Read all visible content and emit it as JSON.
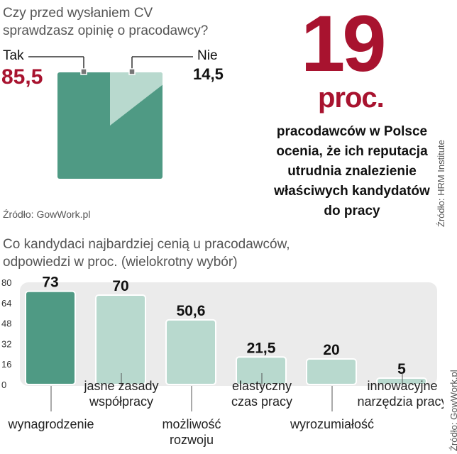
{
  "pie_block": {
    "question": [
      "Czy przed wysłaniem CV",
      "sprawdzasz opinię o pracodawcy?"
    ],
    "source": "Źródło: GowWork.pl"
  },
  "highlight": {
    "number": "19",
    "unit": "proc.",
    "description": [
      "pracodawców w Polsce",
      "ocenia, że ich reputacja",
      "utrudnia znalezienie",
      "właściwych kandydatów",
      "do pracy"
    ],
    "source": "Źródło: HRM Institute"
  },
  "bar_block": {
    "title": [
      "Co kandydaci najbardziej cenią u pracodawców,",
      "odpowiedzi w proc. (wielokrotny wybór)"
    ],
    "source": "Źródło: GowWork.pl"
  },
  "colors": {
    "accent": "#a8132f",
    "dark_green": "#4f9a84",
    "light_green": "#b8d9ce",
    "panel": "#ebebeb"
  },
  "chart_data": [
    {
      "type": "pie",
      "categories": [
        "Tak",
        "Nie"
      ],
      "values": [
        85.5,
        14.5
      ],
      "value_labels": [
        "85,5",
        "14,5"
      ]
    },
    {
      "type": "bar",
      "categories": [
        [
          "wynagrodzenie"
        ],
        [
          "jasne zasady",
          "współpracy"
        ],
        [
          "możliwość",
          "rozwoju"
        ],
        [
          "elastyczny",
          "czas pracy"
        ],
        [
          "wyrozumiałość"
        ],
        [
          "innowacyjne",
          "narzędzia pracy"
        ]
      ],
      "values": [
        73,
        70,
        50.6,
        21.5,
        20,
        5
      ],
      "value_labels": [
        "73",
        "70",
        "50,6",
        "21,5",
        "20",
        "5"
      ],
      "highlight_index": 0,
      "yticks": [
        "80",
        "64",
        "48",
        "32",
        "16",
        "0"
      ],
      "ylim": [
        0,
        80
      ]
    }
  ]
}
